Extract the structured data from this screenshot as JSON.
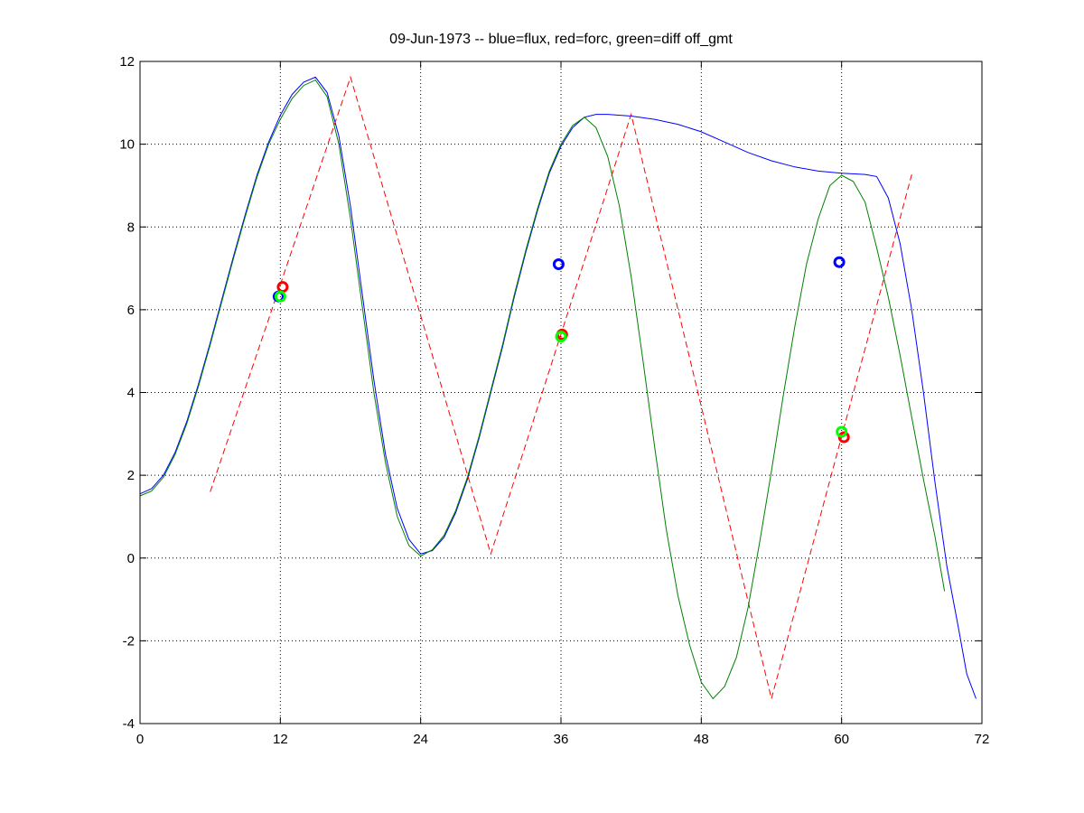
{
  "chart_data": {
    "type": "line",
    "title": "09-Jun-1973 -- blue=flux, red=forc, green=diff off_gmt",
    "xlabel": "",
    "ylabel": "",
    "xlim": [
      0,
      72
    ],
    "ylim": [
      -4,
      12
    ],
    "xticks": [
      0,
      12,
      24,
      36,
      48,
      60,
      72
    ],
    "yticks": [
      -4,
      -2,
      0,
      2,
      4,
      6,
      8,
      10,
      12
    ],
    "grid": true,
    "colors": {
      "flux": "#0000ff",
      "forc": "#ff0000",
      "diff": "#008000",
      "diff_marker": "#00ff00"
    },
    "series": [
      {
        "name": "flux",
        "color": "#0000ff",
        "style": "solid",
        "points": [
          [
            0,
            1.55
          ],
          [
            1,
            1.68
          ],
          [
            2,
            2.0
          ],
          [
            3,
            2.55
          ],
          [
            4,
            3.3
          ],
          [
            5,
            4.2
          ],
          [
            6,
            5.2
          ],
          [
            7,
            6.25
          ],
          [
            8,
            7.3
          ],
          [
            9,
            8.3
          ],
          [
            10,
            9.25
          ],
          [
            11,
            10.05
          ],
          [
            12,
            10.7
          ],
          [
            13,
            11.2
          ],
          [
            14,
            11.5
          ],
          [
            15,
            11.62
          ],
          [
            16,
            11.25
          ],
          [
            17,
            10.2
          ],
          [
            18,
            8.5
          ],
          [
            19,
            6.4
          ],
          [
            20,
            4.3
          ],
          [
            21,
            2.5
          ],
          [
            22,
            1.2
          ],
          [
            23,
            0.45
          ],
          [
            24,
            0.1
          ],
          [
            25,
            0.18
          ],
          [
            26,
            0.5
          ],
          [
            27,
            1.1
          ],
          [
            28,
            1.9
          ],
          [
            29,
            2.9
          ],
          [
            30,
            4.0
          ],
          [
            31,
            5.1
          ],
          [
            32,
            6.3
          ],
          [
            33,
            7.4
          ],
          [
            34,
            8.4
          ],
          [
            35,
            9.3
          ],
          [
            36,
            9.95
          ],
          [
            37,
            10.4
          ],
          [
            38,
            10.65
          ],
          [
            39,
            10.72
          ],
          [
            40,
            10.72
          ],
          [
            42,
            10.68
          ],
          [
            44,
            10.6
          ],
          [
            46,
            10.48
          ],
          [
            48,
            10.3
          ],
          [
            50,
            10.05
          ],
          [
            52,
            9.8
          ],
          [
            54,
            9.6
          ],
          [
            56,
            9.45
          ],
          [
            58,
            9.35
          ],
          [
            60,
            9.3
          ],
          [
            62,
            9.27
          ],
          [
            63,
            9.22
          ],
          [
            64,
            8.7
          ],
          [
            65,
            7.6
          ],
          [
            66,
            6.0
          ],
          [
            67,
            4.0
          ],
          [
            68,
            1.8
          ],
          [
            69,
            -0.2
          ],
          [
            70,
            -1.7
          ],
          [
            70.7,
            -2.8
          ],
          [
            71.5,
            -3.4
          ]
        ]
      },
      {
        "name": "forc",
        "color": "#ff0000",
        "style": "dashed",
        "points": [
          [
            6,
            1.6
          ],
          [
            18,
            11.62
          ],
          [
            30,
            0.1
          ],
          [
            42,
            10.72
          ],
          [
            54,
            -3.4
          ],
          [
            66,
            9.27
          ]
        ]
      },
      {
        "name": "diff",
        "color": "#008000",
        "style": "solid",
        "points": [
          [
            0,
            1.5
          ],
          [
            1,
            1.62
          ],
          [
            2,
            1.95
          ],
          [
            3,
            2.5
          ],
          [
            4,
            3.25
          ],
          [
            5,
            4.15
          ],
          [
            6,
            5.15
          ],
          [
            7,
            6.2
          ],
          [
            8,
            7.25
          ],
          [
            9,
            8.25
          ],
          [
            10,
            9.2
          ],
          [
            11,
            10.0
          ],
          [
            12,
            10.6
          ],
          [
            13,
            11.1
          ],
          [
            14,
            11.42
          ],
          [
            15,
            11.55
          ],
          [
            16,
            11.15
          ],
          [
            17,
            10.0
          ],
          [
            18,
            8.2
          ],
          [
            19,
            6.1
          ],
          [
            20,
            4.0
          ],
          [
            21,
            2.3
          ],
          [
            22,
            1.0
          ],
          [
            23,
            0.3
          ],
          [
            24,
            0.05
          ],
          [
            25,
            0.2
          ],
          [
            26,
            0.55
          ],
          [
            27,
            1.15
          ],
          [
            28,
            1.95
          ],
          [
            29,
            2.95
          ],
          [
            30,
            4.05
          ],
          [
            31,
            5.15
          ],
          [
            32,
            6.35
          ],
          [
            33,
            7.45
          ],
          [
            34,
            8.45
          ],
          [
            35,
            9.35
          ],
          [
            36,
            10.0
          ],
          [
            37,
            10.45
          ],
          [
            38,
            10.65
          ],
          [
            39,
            10.4
          ],
          [
            40,
            9.7
          ],
          [
            41,
            8.5
          ],
          [
            42,
            6.8
          ],
          [
            43,
            4.8
          ],
          [
            44,
            2.7
          ],
          [
            45,
            0.7
          ],
          [
            46,
            -0.9
          ],
          [
            47,
            -2.1
          ],
          [
            48,
            -3.0
          ],
          [
            49,
            -3.4
          ],
          [
            50,
            -3.1
          ],
          [
            51,
            -2.4
          ],
          [
            52,
            -1.2
          ],
          [
            53,
            0.4
          ],
          [
            54,
            2.1
          ],
          [
            55,
            3.9
          ],
          [
            56,
            5.6
          ],
          [
            57,
            7.1
          ],
          [
            58,
            8.2
          ],
          [
            59,
            9.0
          ],
          [
            60,
            9.25
          ],
          [
            61,
            9.1
          ],
          [
            62,
            8.6
          ],
          [
            63,
            7.5
          ],
          [
            64,
            6.3
          ],
          [
            65,
            4.9
          ],
          [
            66,
            3.4
          ],
          [
            67,
            1.9
          ],
          [
            68,
            0.5
          ],
          [
            68.8,
            -0.8
          ]
        ]
      }
    ],
    "markers": [
      {
        "series": "flux",
        "color": "#0000ff",
        "points": [
          [
            11.85,
            6.32
          ],
          [
            35.8,
            7.1
          ],
          [
            59.8,
            7.15
          ]
        ]
      },
      {
        "series": "forc",
        "color": "#ff0000",
        "points": [
          [
            12.2,
            6.55
          ],
          [
            36.1,
            5.4
          ],
          [
            60.2,
            2.92
          ]
        ]
      },
      {
        "series": "diff",
        "color": "#00ff00",
        "points": [
          [
            12.0,
            6.32
          ],
          [
            36.0,
            5.35
          ],
          [
            60.0,
            3.05
          ]
        ]
      }
    ]
  }
}
